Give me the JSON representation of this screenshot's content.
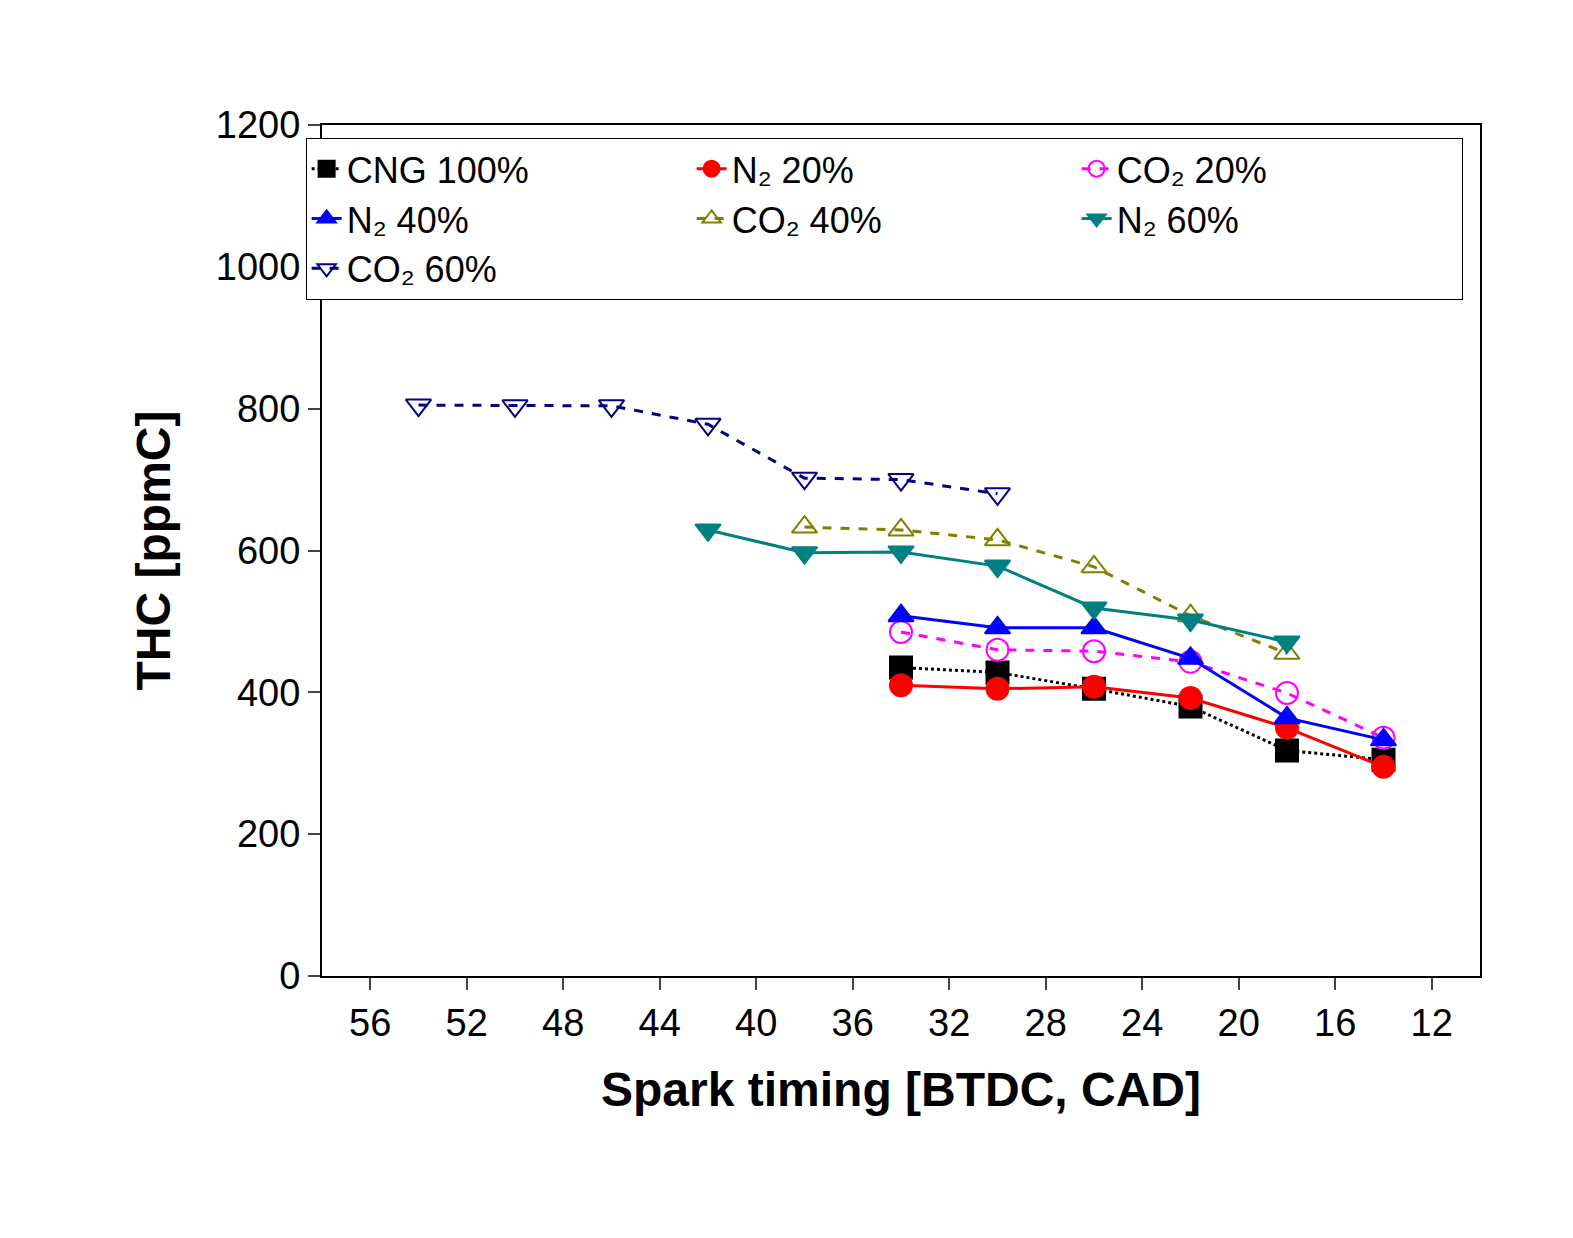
{
  "chart_data": {
    "type": "line",
    "x_label": "Spark timing [BTDC, CAD]",
    "y_label": "THC [ppmC]",
    "xlim": [
      58,
      10
    ],
    "xticks": [
      56,
      52,
      48,
      44,
      40,
      36,
      32,
      28,
      24,
      20,
      16,
      12
    ],
    "ylim": [
      0,
      1200
    ],
    "yticks": [
      0,
      200,
      400,
      600,
      800,
      1000,
      1200
    ],
    "grid": false,
    "legend": "upper right",
    "series": [
      {
        "name": "CNG 100%",
        "color": "#000000",
        "marker": "square",
        "line_style": "dotted",
        "x": [
          34,
          30,
          26,
          22,
          18,
          14
        ],
        "values": [
          435,
          428,
          405,
          380,
          318,
          305
        ]
      },
      {
        "name": "N₂ 20%",
        "color": "#ff0000",
        "marker": "circle",
        "line_style": "solid",
        "x": [
          34,
          30,
          26,
          22,
          18,
          14
        ],
        "values": [
          410,
          405,
          408,
          392,
          350,
          295
        ]
      },
      {
        "name": "CO₂ 20%",
        "color": "#ff00ff",
        "marker": "circle-open",
        "line_style": "dashed",
        "x": [
          34,
          30,
          26,
          22,
          18,
          14
        ],
        "values": [
          485,
          460,
          458,
          443,
          399,
          336
        ]
      },
      {
        "name": "N₂ 40%",
        "color": "#0000ff",
        "marker": "triangle-up",
        "line_style": "solid",
        "x": [
          34,
          30,
          26,
          22,
          18,
          14
        ],
        "values": [
          508,
          491,
          491,
          448,
          364,
          333
        ]
      },
      {
        "name": "CO₂ 40%",
        "color": "#808000",
        "marker": "triangle-up-open",
        "line_style": "dashed",
        "x": [
          38,
          34,
          30,
          26,
          22,
          18
        ],
        "values": [
          633,
          629,
          615,
          577,
          508,
          455
        ]
      },
      {
        "name": "N₂ 60%",
        "color": "#008080",
        "marker": "triangle-down",
        "line_style": "solid",
        "x": [
          42,
          38,
          34,
          30,
          26,
          22,
          18
        ],
        "values": [
          629,
          597,
          598,
          578,
          519,
          502,
          471
        ]
      },
      {
        "name": "CO₂ 60%",
        "color": "#000080",
        "marker": "triangle-down-open",
        "line_style": "dashed",
        "x": [
          54,
          50,
          46,
          42,
          38,
          34,
          30
        ],
        "values": [
          805,
          804,
          804,
          778,
          702,
          700,
          680
        ]
      }
    ]
  }
}
